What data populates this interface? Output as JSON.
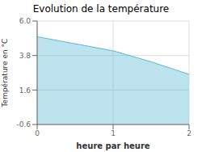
{
  "chart_data": {
    "type": "area",
    "title": "Evolution de la température",
    "xlabel": "heure par heure",
    "ylabel": "Température en °C",
    "x": [
      0,
      0.5,
      1.0,
      1.5,
      2.0
    ],
    "values": [
      5.0,
      4.55,
      4.1,
      3.4,
      2.6
    ],
    "color": "#5bb8d4",
    "xlim": [
      0,
      2
    ],
    "ylim": [
      -0.6,
      6.0
    ],
    "xticks": [
      0,
      1,
      2
    ],
    "yticks": [
      -0.6,
      1.6,
      3.8,
      {
        "value": 6.0,
        "label": "6.0"
      }
    ],
    "grid": true
  }
}
